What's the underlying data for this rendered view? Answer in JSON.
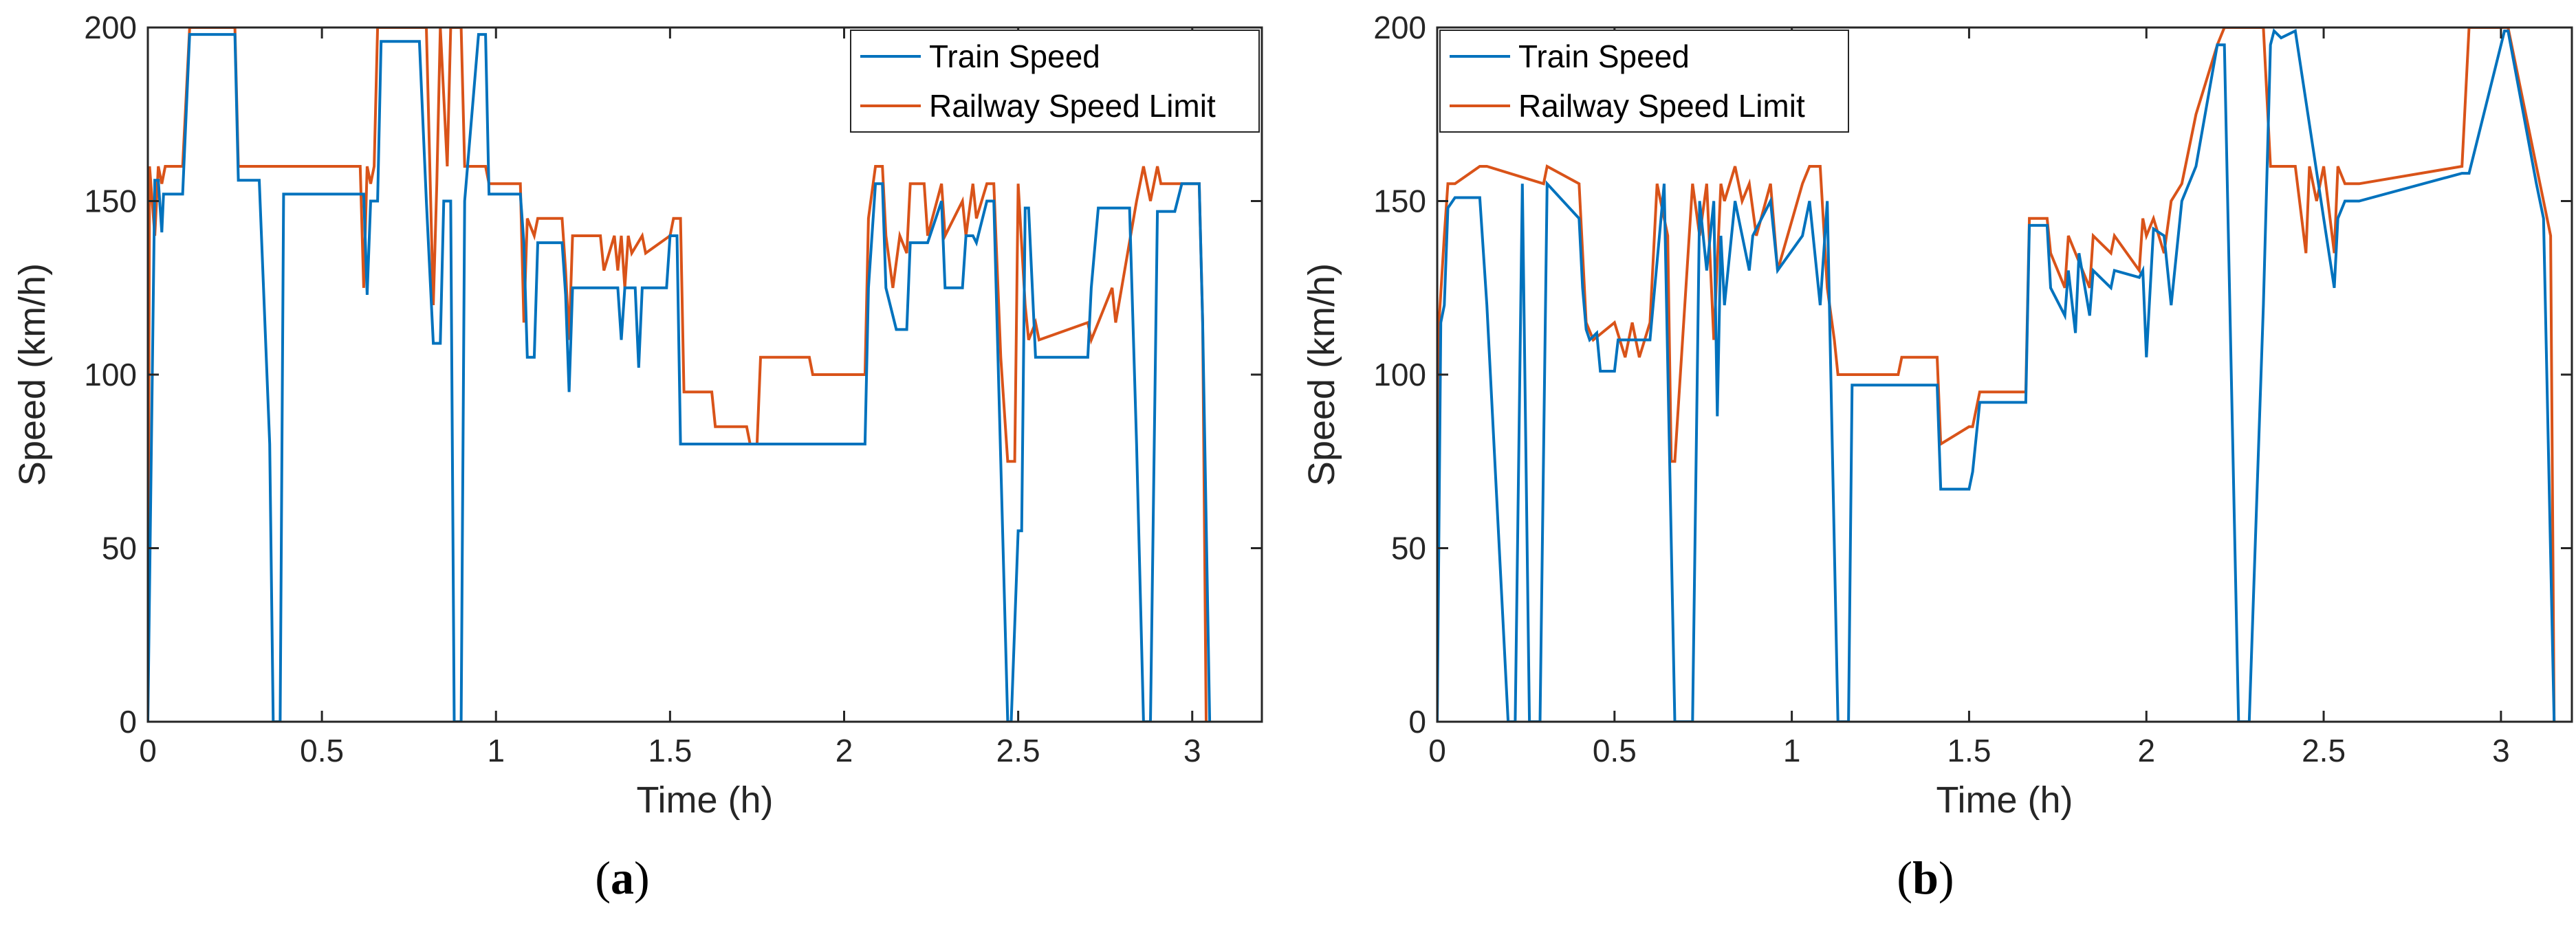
{
  "colors": {
    "train_speed": "#0072BD",
    "speed_limit": "#D95319",
    "axis": "#262626"
  },
  "chart_data": [
    {
      "type": "line",
      "panel_label": "(a)",
      "xlabel": "Time (h)",
      "ylabel": "Speed (km/h)",
      "xlim": [
        0,
        3.2
      ],
      "ylim": [
        0,
        200
      ],
      "xticks": [
        0,
        0.5,
        1,
        1.5,
        2,
        2.5,
        3
      ],
      "xtick_labels": [
        "0",
        "0.5",
        "1",
        "1.5",
        "2",
        "2.5",
        "3"
      ],
      "yticks": [
        0,
        50,
        100,
        150,
        200
      ],
      "ytick_labels": [
        "0",
        "50",
        "100",
        "150",
        "200"
      ],
      "legend": [
        "Train Speed",
        "Railway Speed Limit"
      ],
      "series": [
        {
          "name": "Train Speed",
          "x": [
            0,
            0.02,
            0.03,
            0.04,
            0.045,
            0.05,
            0.1,
            0.12,
            0.25,
            0.26,
            0.32,
            0.35,
            0.36,
            0.38,
            0.39,
            0.62,
            0.63,
            0.64,
            0.66,
            0.67,
            0.78,
            0.8,
            0.82,
            0.84,
            0.85,
            0.87,
            0.88,
            0.9,
            0.91,
            0.95,
            0.97,
            0.98,
            1.07,
            1.08,
            1.09,
            1.11,
            1.12,
            1.19,
            1.2,
            1.21,
            1.22,
            1.35,
            1.36,
            1.37,
            1.4,
            1.41,
            1.42,
            1.49,
            1.5,
            1.52,
            1.53,
            2.06,
            2.07,
            2.09,
            2.11,
            2.12,
            2.15,
            2.18,
            2.19,
            2.24,
            2.28,
            2.29,
            2.34,
            2.35,
            2.37,
            2.38,
            2.41,
            2.43,
            2.45,
            2.47,
            2.48,
            2.5,
            2.51,
            2.52,
            2.53,
            2.55,
            2.56,
            2.7,
            2.71,
            2.73,
            2.78,
            2.82,
            2.84,
            2.86,
            2.88,
            2.9,
            2.91,
            2.95,
            2.97,
            3.02,
            3.03,
            3.05
          ],
          "y": [
            0,
            156,
            156,
            141,
            152,
            152,
            152,
            198,
            198,
            156,
            156,
            80,
            0,
            0,
            152,
            152,
            123,
            150,
            150,
            196,
            196,
            150,
            109,
            109,
            150,
            150,
            0,
            0,
            150,
            198,
            198,
            152,
            152,
            138,
            105,
            105,
            138,
            138,
            123,
            95,
            125,
            125,
            110,
            125,
            125,
            102,
            125,
            125,
            140,
            140,
            80,
            80,
            125,
            155,
            155,
            125,
            113,
            113,
            138,
            138,
            150,
            125,
            125,
            140,
            140,
            138,
            150,
            150,
            75,
            0,
            0,
            55,
            55,
            148,
            148,
            105,
            105,
            105,
            125,
            148,
            148,
            148,
            80,
            0,
            0,
            147,
            147,
            147,
            155,
            155,
            115,
            0
          ]
        },
        {
          "name": "Railway Speed Limit",
          "x": [
            0,
            0.005,
            0.02,
            0.03,
            0.04,
            0.05,
            0.1,
            0.12,
            0.25,
            0.26,
            0.61,
            0.62,
            0.63,
            0.64,
            0.65,
            0.66,
            0.8,
            0.82,
            0.83,
            0.84,
            0.86,
            0.87,
            0.9,
            0.91,
            0.97,
            0.98,
            1.07,
            1.08,
            1.09,
            1.11,
            1.12,
            1.19,
            1.2,
            1.21,
            1.22,
            1.3,
            1.31,
            1.34,
            1.35,
            1.36,
            1.37,
            1.38,
            1.39,
            1.42,
            1.43,
            1.5,
            1.51,
            1.53,
            1.54,
            1.62,
            1.63,
            1.72,
            1.73,
            1.75,
            1.76,
            1.9,
            1.91,
            2.06,
            2.07,
            2.09,
            2.11,
            2.12,
            2.14,
            2.16,
            2.18,
            2.19,
            2.23,
            2.24,
            2.28,
            2.29,
            2.34,
            2.35,
            2.37,
            2.38,
            2.41,
            2.43,
            2.45,
            2.47,
            2.49,
            2.5,
            2.52,
            2.53,
            2.55,
            2.56,
            2.7,
            2.71,
            2.73,
            2.77,
            2.78,
            2.84,
            2.86,
            2.88,
            2.9,
            2.91,
            3.02,
            3.03,
            3.04
          ],
          "y": [
            0,
            160,
            140,
            160,
            155,
            160,
            160,
            200,
            200,
            160,
            160,
            125,
            160,
            155,
            160,
            200,
            200,
            120,
            155,
            200,
            160,
            200,
            200,
            160,
            160,
            155,
            155,
            115,
            145,
            140,
            145,
            145,
            130,
            110,
            140,
            140,
            130,
            140,
            130,
            140,
            125,
            140,
            135,
            140,
            135,
            140,
            145,
            145,
            95,
            95,
            85,
            85,
            80,
            80,
            105,
            105,
            100,
            100,
            145,
            160,
            160,
            140,
            125,
            140,
            135,
            155,
            155,
            140,
            155,
            140,
            150,
            140,
            155,
            145,
            155,
            155,
            105,
            75,
            75,
            155,
            120,
            110,
            115,
            110,
            115,
            110,
            115,
            125,
            115,
            150,
            160,
            150,
            160,
            155,
            155,
            115,
            0
          ]
        }
      ]
    },
    {
      "type": "line",
      "panel_label": "(b)",
      "xlabel": "Time (h)",
      "ylabel": "Speed (km/h)",
      "xlim": [
        0,
        3.2
      ],
      "ylim": [
        0,
        200
      ],
      "xticks": [
        0,
        0.5,
        1,
        1.5,
        2,
        2.5,
        3
      ],
      "xtick_labels": [
        "0",
        "0.5",
        "1",
        "1.5",
        "2",
        "2.5",
        "3"
      ],
      "yticks": [
        0,
        50,
        100,
        150,
        200
      ],
      "ytick_labels": [
        "0",
        "50",
        "100",
        "150",
        "200"
      ],
      "legend": [
        "Train Speed",
        "Railway Speed Limit"
      ],
      "series": [
        {
          "name": "Train Speed",
          "x": [
            0,
            0.01,
            0.02,
            0.03,
            0.05,
            0.12,
            0.14,
            0.2,
            0.22,
            0.24,
            0.26,
            0.29,
            0.31,
            0.4,
            0.41,
            0.42,
            0.43,
            0.45,
            0.46,
            0.5,
            0.51,
            0.6,
            0.64,
            0.67,
            0.72,
            0.74,
            0.76,
            0.78,
            0.79,
            0.8,
            0.81,
            0.84,
            0.85,
            0.88,
            0.89,
            0.94,
            0.96,
            1.03,
            1.05,
            1.08,
            1.1,
            1.13,
            1.16,
            1.17,
            1.41,
            1.42,
            1.5,
            1.51,
            1.53,
            1.66,
            1.67,
            1.72,
            1.73,
            1.77,
            1.78,
            1.8,
            1.81,
            1.84,
            1.85,
            1.9,
            1.91,
            1.98,
            1.99,
            2.0,
            2.02,
            2.05,
            2.07,
            2.1,
            2.12,
            2.14,
            2.2,
            2.22,
            2.26,
            2.29,
            2.33,
            2.35,
            2.36,
            2.38,
            2.42,
            2.5,
            2.53,
            2.54,
            2.56,
            2.6,
            2.89,
            2.91,
            3.01,
            3.02,
            3.1,
            3.12,
            3.15
          ],
          "y": [
            0,
            115,
            120,
            148,
            151,
            151,
            120,
            0,
            0,
            155,
            0,
            0,
            155,
            145,
            125,
            113,
            110,
            112,
            101,
            101,
            110,
            110,
            155,
            0,
            0,
            150,
            130,
            150,
            88,
            140,
            120,
            150,
            145,
            130,
            140,
            150,
            130,
            140,
            150,
            120,
            150,
            0,
            0,
            97,
            97,
            67,
            67,
            72,
            92,
            92,
            143,
            143,
            125,
            117,
            130,
            112,
            135,
            117,
            130,
            125,
            130,
            128,
            130,
            105,
            142,
            140,
            120,
            150,
            155,
            160,
            195,
            195,
            0,
            0,
            120,
            195,
            199,
            197,
            199,
            145,
            125,
            145,
            150,
            150,
            158,
            158,
            199,
            199,
            155,
            145,
            0
          ]
        },
        {
          "name": "Railway Speed Limit",
          "x": [
            0,
            0.005,
            0.02,
            0.03,
            0.05,
            0.12,
            0.14,
            0.3,
            0.31,
            0.4,
            0.42,
            0.44,
            0.5,
            0.53,
            0.55,
            0.57,
            0.6,
            0.62,
            0.65,
            0.66,
            0.67,
            0.72,
            0.74,
            0.76,
            0.78,
            0.8,
            0.81,
            0.84,
            0.86,
            0.88,
            0.9,
            0.94,
            0.96,
            1.03,
            1.05,
            1.08,
            1.1,
            1.12,
            1.13,
            1.3,
            1.31,
            1.41,
            1.42,
            1.5,
            1.51,
            1.53,
            1.66,
            1.67,
            1.72,
            1.73,
            1.77,
            1.78,
            1.84,
            1.85,
            1.9,
            1.91,
            1.98,
            1.99,
            2.0,
            2.02,
            2.05,
            2.07,
            2.1,
            2.12,
            2.14,
            2.2,
            2.22,
            2.24,
            2.26,
            2.33,
            2.35,
            2.42,
            2.45,
            2.46,
            2.48,
            2.5,
            2.53,
            2.54,
            2.56,
            2.6,
            2.89,
            2.91,
            3.01,
            3.02,
            3.1,
            3.12,
            3.14,
            3.15
          ],
          "y": [
            0,
            115,
            140,
            155,
            155,
            160,
            160,
            155,
            160,
            155,
            115,
            110,
            115,
            105,
            115,
            105,
            115,
            155,
            140,
            75,
            75,
            155,
            140,
            155,
            110,
            155,
            150,
            160,
            150,
            155,
            140,
            155,
            130,
            155,
            160,
            160,
            125,
            110,
            100,
            100,
            105,
            105,
            80,
            85,
            85,
            95,
            95,
            145,
            145,
            135,
            125,
            140,
            125,
            140,
            135,
            140,
            130,
            145,
            140,
            145,
            135,
            150,
            155,
            165,
            175,
            195,
            200,
            200,
            200,
            200,
            160,
            160,
            135,
            160,
            150,
            160,
            135,
            160,
            155,
            155,
            160,
            200,
            200,
            200,
            160,
            150,
            140,
            0
          ]
        }
      ]
    }
  ]
}
